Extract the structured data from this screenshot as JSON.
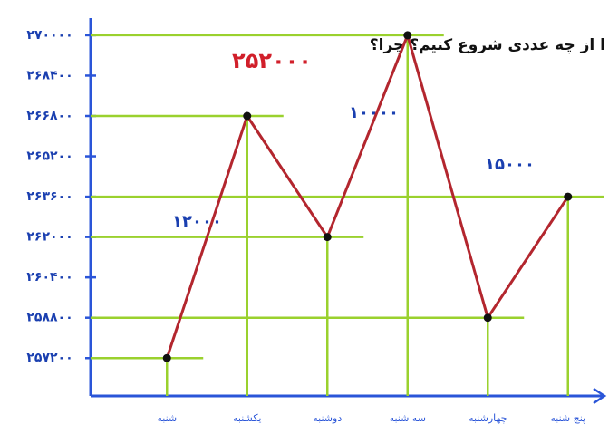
{
  "chart_data": {
    "type": "line",
    "title": "۲۵۲۰۰۰",
    "subtitle": "ا از چه عددی شروع کنیم؟ چرا؟",
    "annotations": [
      "۱۲۰۰۰",
      "۱۰۰۰۰",
      "۱۵۰۰۰"
    ],
    "categories": [
      "شنبه",
      "یکشنبه",
      "دوشنبه",
      "سه شنبه",
      "چهارشنبه",
      "پنج شنبه"
    ],
    "series": [
      {
        "name": null,
        "color": "#b3262e",
        "values": [
          257200,
          266800,
          262000,
          270000,
          258800,
          263600
        ]
      }
    ],
    "ylim": [
      255700,
      270500
    ],
    "yticks": [
      {
        "value": 257200,
        "label": "۲۵۷۲۰۰"
      },
      {
        "value": 258800,
        "label": "۲۵۸۸۰۰"
      },
      {
        "value": 260400,
        "label": "۲۶۰۴۰۰"
      },
      {
        "value": 262000,
        "label": "۲۶۲۰۰۰"
      },
      {
        "value": 263600,
        "label": "۲۶۳۶۰۰"
      },
      {
        "value": 265200,
        "label": "۲۶۵۲۰۰"
      },
      {
        "value": 266800,
        "label": "۲۶۶۸۰۰"
      },
      {
        "value": 268400,
        "label": "۲۶۸۴۰۰"
      },
      {
        "value": 270000,
        "label": "۲۷۰۰۰۰"
      }
    ],
    "guide_color": "#9ad12e"
  }
}
